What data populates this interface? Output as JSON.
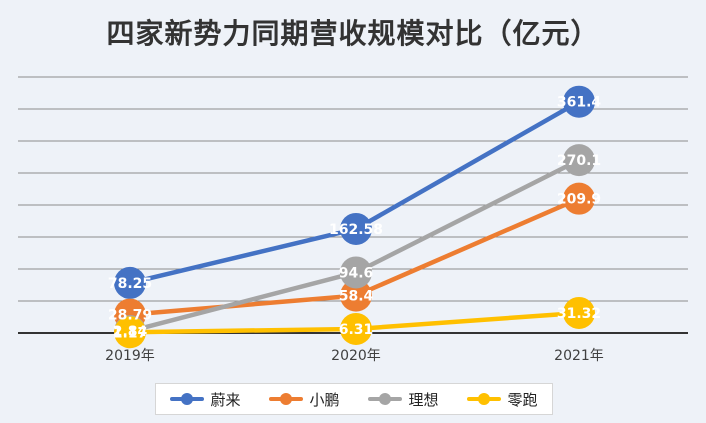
{
  "chart_data": {
    "type": "line",
    "title": "四家新势力同期营收规模对比（亿元）",
    "categories": [
      "2019年",
      "2020年",
      "2021年"
    ],
    "ylim": [
      0,
      400
    ],
    "grid": true,
    "legend_position": "bottom",
    "series": [
      {
        "name": "蔚来",
        "color": "#4472c4",
        "values": [
          78.25,
          162.58,
          361.4
        ],
        "labels": [
          "78.25",
          "162.58",
          "361.4"
        ]
      },
      {
        "name": "小鹏",
        "color": "#ed7d31",
        "values": [
          28.79,
          58.4,
          209.9
        ],
        "labels": [
          "28.79",
          "58.4",
          "209.9"
        ]
      },
      {
        "name": "理想",
        "color": "#a5a5a5",
        "values": [
          2.84,
          94.6,
          270.1
        ],
        "labels": [
          "2.84",
          "94.6",
          "270.1"
        ]
      },
      {
        "name": "零跑",
        "color": "#ffc000",
        "values": [
          1.17,
          6.31,
          31.32
        ],
        "labels": [
          "1.17",
          "6.31",
          "31.32"
        ]
      }
    ]
  }
}
